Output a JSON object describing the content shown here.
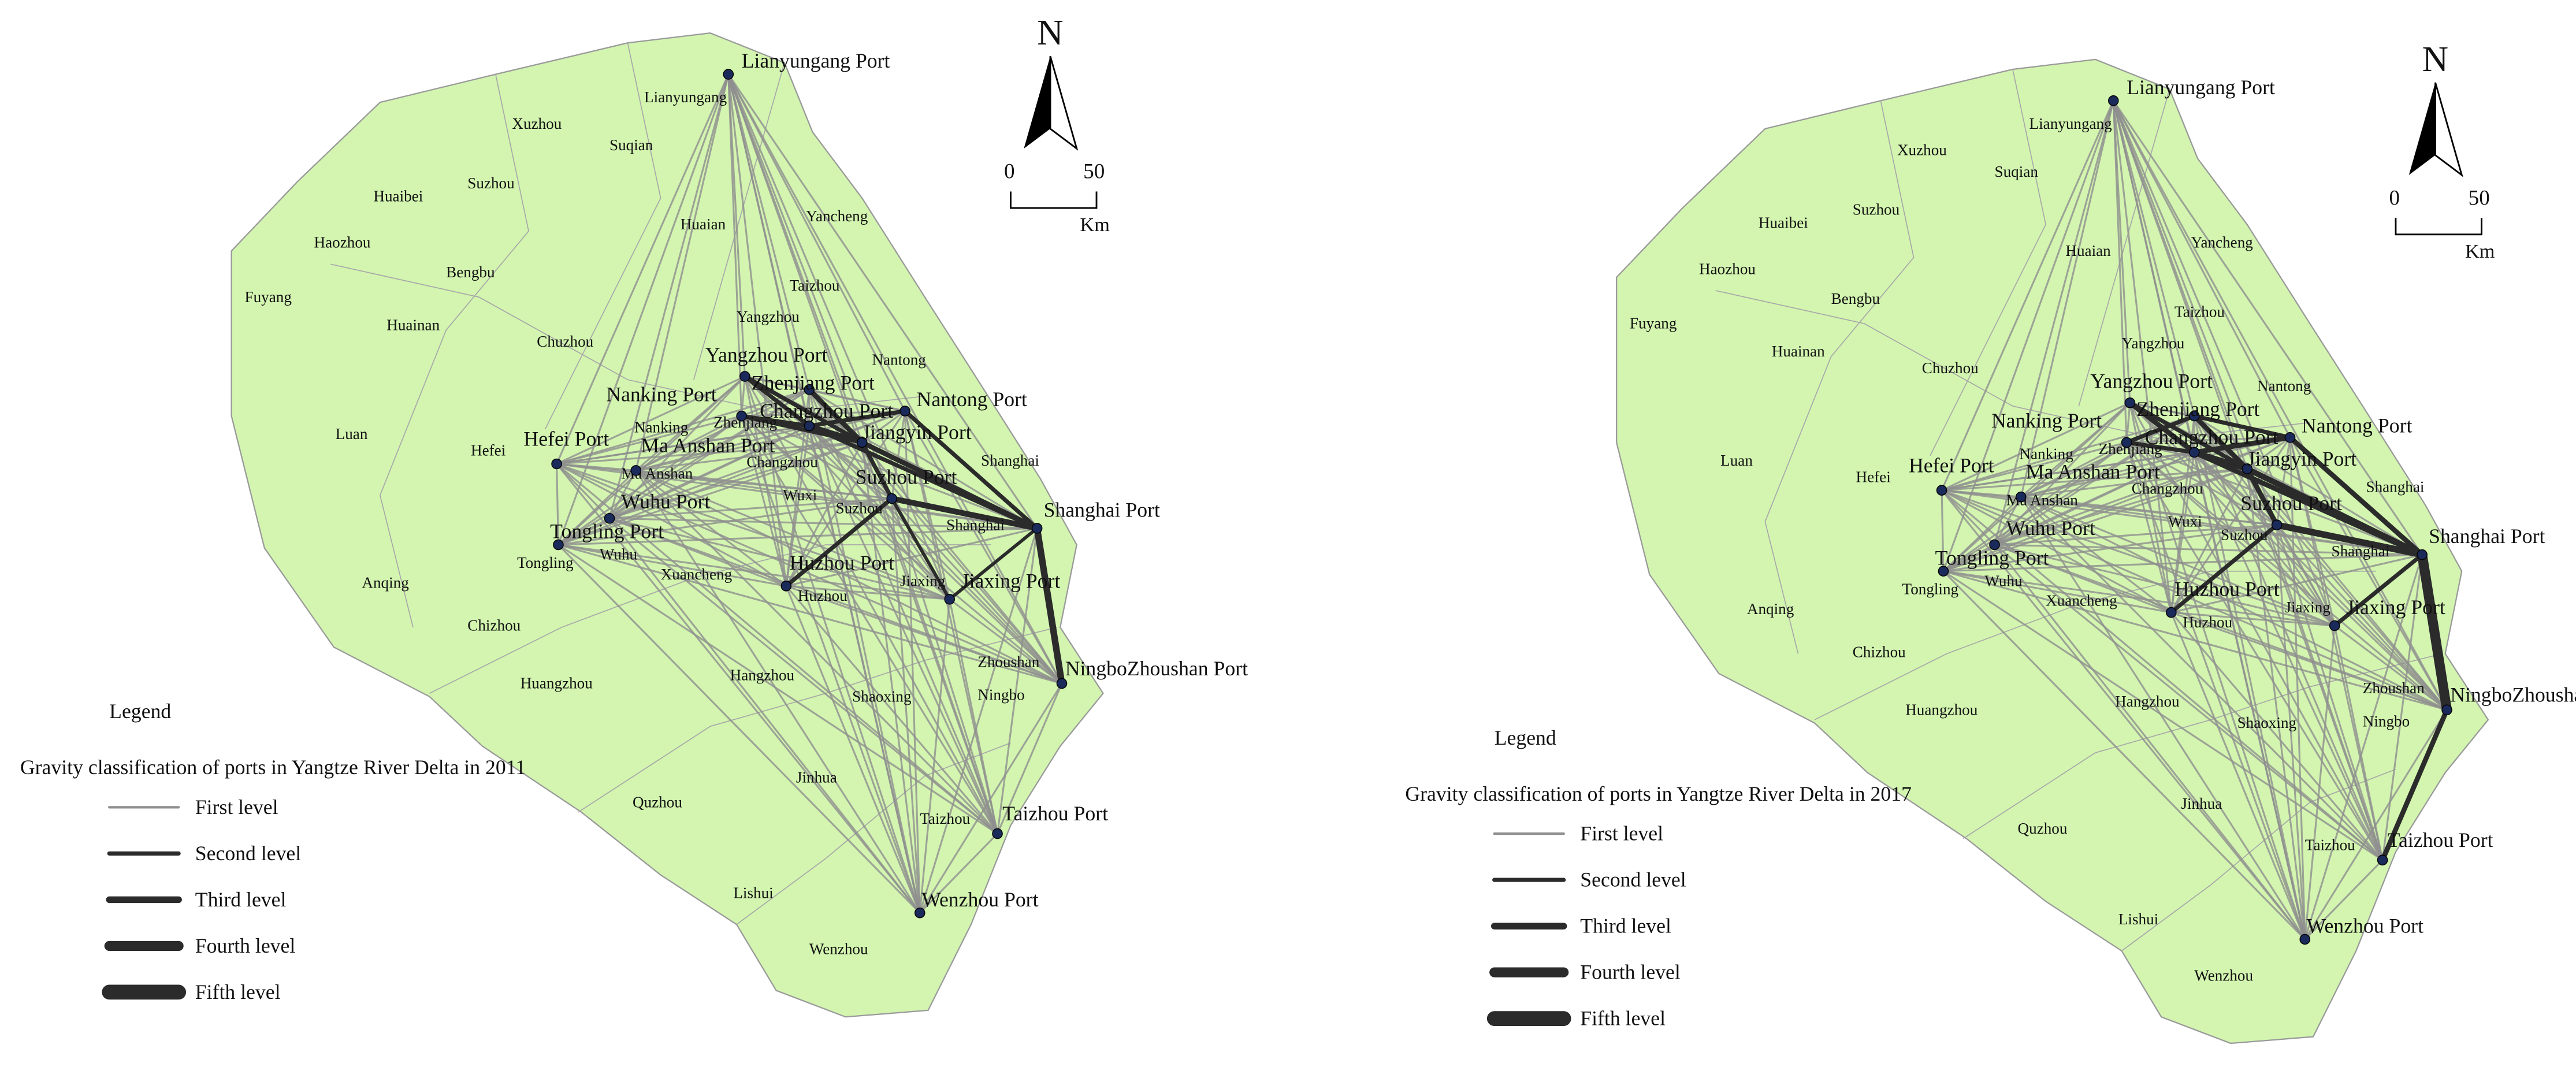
{
  "maps": [
    {
      "legend_heading": "Legend",
      "title": "Gravity classification of ports in Yangtze River Delta in 2011",
      "levels": [
        "First level",
        "Second level",
        "Third level",
        "Fourth level",
        "Fifth level"
      ],
      "north": "N",
      "scale": [
        "0",
        "50"
      ],
      "scale_unit": "Km",
      "ports": [
        "Lianyungang Port",
        "Yangzhou Port",
        "Zhenjiang Port",
        "Nanking Port",
        "Changzhou Port",
        "Nantong Port",
        "Jiangyin Port",
        "Hefei Port",
        "Ma Anshan Port",
        "Suzhou Port",
        "Wuhu Port",
        "Shanghai Port",
        "Tongling Port",
        "Huzhou Port",
        "Jiaxing Port",
        "NingboZhoushan Port",
        "Taizhou Port",
        "Wenzhou Port"
      ],
      "cities": [
        "Lianyungang",
        "Xuzhou",
        "Suzhou",
        "Suqian",
        "Huaibei",
        "Haozhou",
        "Bengbu",
        "Huaian",
        "Yancheng",
        "Fuyang",
        "Huainan",
        "Chuzhou",
        "Taizhou",
        "Yangzhou",
        "Nantong",
        "Luan",
        "Hefei",
        "Zhenjiang",
        "Nanking",
        "Ma Anshan",
        "Changzhou",
        "Wuxi",
        "Suzhou",
        "Shanghai",
        "Shanghai",
        "Wuhu",
        "Tongling",
        "Xuancheng",
        "Anqing",
        "Huzhou",
        "Jiaxing",
        "Chizhou",
        "Zhoushan",
        "Huangzhou",
        "Hangzhou",
        "Shaoxing",
        "Ningbo",
        "Jinhua",
        "Quzhou",
        "Taizhou",
        "Lishui",
        "Wenzhou"
      ]
    },
    {
      "legend_heading": "Legend",
      "title": "Gravity classification of ports in Yangtze River Delta in 2017",
      "levels": [
        "First level",
        "Second level",
        "Third level",
        "Fourth level",
        "Fifth level"
      ],
      "north": "N",
      "scale": [
        "0",
        "50"
      ],
      "scale_unit": "Km",
      "ports": [
        "Lianyungang Port",
        "Yangzhou Port",
        "Zhenjiang Port",
        "Nanking Port",
        "Changzhou Port",
        "Nantong Port",
        "Jiangyin Port",
        "Hefei Port",
        "Ma Anshan Port",
        "Suzhou Port",
        "Wuhu Port",
        "Shanghai Port",
        "Tongling Port",
        "Huzhou Port",
        "Jiaxing Port",
        "NingboZhoushan Port",
        "Taizhou Port",
        "Wenzhou Port"
      ],
      "cities": [
        "Lianyungang",
        "Xuzhou",
        "Suzhou",
        "Suqian",
        "Huaibei",
        "Haozhou",
        "Bengbu",
        "Huaian",
        "Yancheng",
        "Fuyang",
        "Huainan",
        "Chuzhou",
        "Taizhou",
        "Yangzhou",
        "Nantong",
        "Luan",
        "Hefei",
        "Zhenjiang",
        "Nanking",
        "Ma Anshan",
        "Changzhou",
        "Wuxi",
        "Suzhou",
        "Shanghai",
        "Shanghai",
        "Wuhu",
        "Tongling",
        "Xuancheng",
        "Anqing",
        "Huzhou",
        "Jiaxing",
        "Chizhou",
        "Zhoushan",
        "Huangzhou",
        "Hangzhou",
        "Shaoxing",
        "Ningbo",
        "Jinhua",
        "Quzhou",
        "Taizhou",
        "Lishui",
        "Wenzhou"
      ]
    }
  ]
}
